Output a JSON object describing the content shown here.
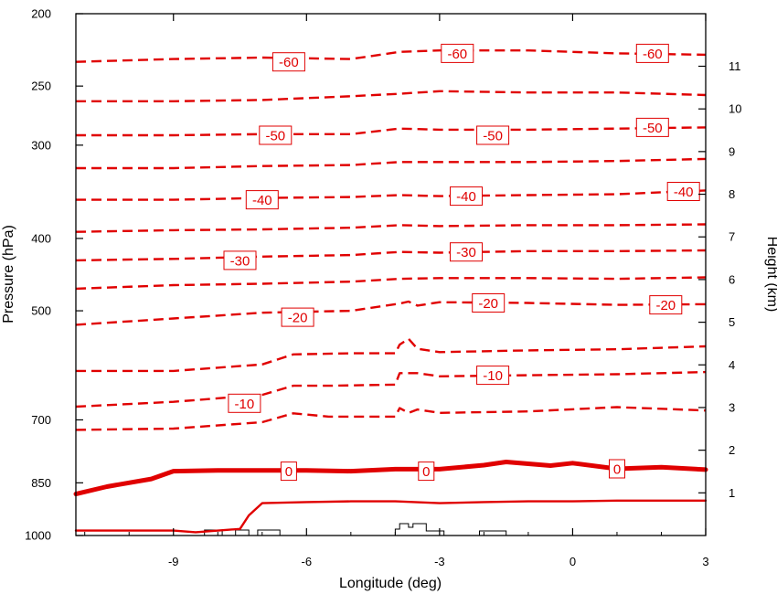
{
  "chart_data": {
    "type": "line",
    "title": "",
    "xlabel": "Longitude (deg)",
    "ylabel": "Pressure (hPa)",
    "y2label": "Height (km)",
    "xlim": [
      -11.2,
      3
    ],
    "ylim_pressure": [
      1000,
      200
    ],
    "y_scale": "log-pressure",
    "x_ticks": [
      -9,
      -6,
      -3,
      0,
      3
    ],
    "y_ticks": [
      200,
      250,
      300,
      400,
      500,
      700,
      850,
      1000
    ],
    "y2_ticks": [
      1,
      2,
      3,
      4,
      5,
      6,
      7,
      8,
      9,
      10,
      11
    ],
    "line_color": "#e00000",
    "contours": [
      {
        "level": -60,
        "style": "dashed",
        "x": [
          -11.2,
          -9,
          -7,
          -5,
          -3.9,
          -3,
          -1,
          1,
          3
        ],
        "y": [
          232,
          230,
          229,
          230,
          225,
          224,
          224,
          226,
          227
        ]
      },
      {
        "level": -55,
        "style": "dashed",
        "x": [
          -11.2,
          -9,
          -7,
          -5,
          -3.9,
          -3,
          -1,
          1,
          3
        ],
        "y": [
          262,
          262,
          261,
          258,
          256,
          254,
          255,
          255,
          257
        ]
      },
      {
        "level": -50,
        "style": "dashed",
        "x": [
          -11.2,
          -9,
          -7,
          -5,
          -3.9,
          -3,
          -1,
          1,
          3
        ],
        "y": [
          291,
          291,
          290,
          290,
          285,
          286,
          286,
          285,
          284
        ]
      },
      {
        "level": -45,
        "style": "dashed",
        "x": [
          -11.2,
          -9,
          -7,
          -5,
          -3.9,
          -3,
          -1,
          1,
          3
        ],
        "y": [
          322,
          322,
          320,
          319,
          316,
          316,
          316,
          315,
          313
        ]
      },
      {
        "level": -40,
        "style": "dashed",
        "x": [
          -11.2,
          -9,
          -7,
          -5,
          -3.9,
          -3,
          -1,
          1,
          3
        ],
        "y": [
          355,
          355,
          353,
          352,
          350,
          351,
          350,
          349,
          345
        ]
      },
      {
        "level": -35,
        "style": "dashed",
        "x": [
          -11.2,
          -9,
          -7,
          -5,
          -3.9,
          -3,
          -1,
          1,
          3
        ],
        "y": [
          392,
          390,
          389,
          387,
          384,
          385,
          384,
          384,
          383
        ]
      },
      {
        "level": -30,
        "style": "dashed",
        "x": [
          -11.2,
          -9,
          -7,
          -5,
          -3.9,
          -3,
          -1,
          1,
          3
        ],
        "y": [
          428,
          426,
          423,
          421,
          417,
          418,
          416,
          416,
          415
        ]
      },
      {
        "level": -25,
        "style": "dashed",
        "x": [
          -11.2,
          -9,
          -7,
          -5,
          -3.9,
          -3,
          -1,
          1,
          3
        ],
        "y": [
          467,
          462,
          460,
          457,
          453,
          452,
          452,
          453,
          451
        ]
      },
      {
        "level": -20,
        "style": "dashed",
        "x": [
          -11.2,
          -9,
          -7,
          -5,
          -3.9,
          -3.7,
          -3.5,
          -3,
          -1,
          1,
          3
        ],
        "y": [
          522,
          512,
          503,
          500,
          489,
          486,
          492,
          487,
          488,
          491,
          490
        ]
      },
      {
        "level": -15,
        "style": "dashed",
        "x": [
          -11.2,
          -9,
          -7,
          -6.3,
          -5,
          -4,
          -3.9,
          -3.7,
          -3.5,
          -3,
          -1,
          1,
          3
        ],
        "y": [
          602,
          602,
          590,
          572,
          570,
          570,
          555,
          545,
          562,
          568,
          565,
          563,
          558
        ]
      },
      {
        "level": -10,
        "style": "dashed",
        "x": [
          -11.2,
          -9,
          -7,
          -6.3,
          -5.5,
          -4,
          -3.9,
          -3.5,
          -3,
          -1,
          1,
          3
        ],
        "y": [
          672,
          662,
          648,
          630,
          630,
          628,
          606,
          606,
          612,
          610,
          608,
          604
        ]
      },
      {
        "level": -5,
        "style": "dashed",
        "x": [
          -11.2,
          -9,
          -7,
          -6.3,
          -5.5,
          -4,
          -3.9,
          -3.7,
          -3.5,
          -3,
          -1,
          1,
          3
        ],
        "y": [
          722,
          719,
          705,
          686,
          693,
          693,
          675,
          685,
          678,
          685,
          682,
          673,
          680
        ]
      },
      {
        "level": 0,
        "style": "thick",
        "x": [
          -11.2,
          -10.5,
          -9.5,
          -9,
          -8,
          -6,
          -5,
          -4,
          -3,
          -2,
          -1.5,
          -0.5,
          0,
          1,
          2,
          3
        ],
        "y": [
          880,
          860,
          840,
          820,
          818,
          818,
          820,
          815,
          815,
          805,
          797,
          806,
          800,
          814,
          810,
          816
        ]
      },
      {
        "level": 5,
        "style": "solid",
        "x": [
          -11.2,
          -9,
          -8.5,
          -7.5,
          -7.3,
          -7,
          -6,
          -5,
          -4,
          -3,
          -2,
          -1,
          0,
          1,
          2,
          3
        ],
        "y": [
          985,
          985,
          990,
          980,
          940,
          905,
          902,
          900,
          900,
          905,
          902,
          900,
          900,
          898,
          898,
          898
        ]
      }
    ],
    "contour_labels": [
      {
        "text": "-60",
        "x": -6.4,
        "y": 232
      },
      {
        "text": "-60",
        "x": -2.6,
        "y": 226
      },
      {
        "text": "-60",
        "x": 1.8,
        "y": 226
      },
      {
        "text": "-50",
        "x": -6.7,
        "y": 291
      },
      {
        "text": "-50",
        "x": -1.8,
        "y": 291
      },
      {
        "text": "-50",
        "x": 1.8,
        "y": 284
      },
      {
        "text": "-40",
        "x": -7.0,
        "y": 355
      },
      {
        "text": "-40",
        "x": -2.4,
        "y": 351
      },
      {
        "text": "-40",
        "x": 2.5,
        "y": 346
      },
      {
        "text": "-30",
        "x": -7.5,
        "y": 428
      },
      {
        "text": "-30",
        "x": -2.4,
        "y": 417
      },
      {
        "text": "-20",
        "x": -6.2,
        "y": 510
      },
      {
        "text": "-20",
        "x": -1.9,
        "y": 488
      },
      {
        "text": "-20",
        "x": 2.1,
        "y": 491
      },
      {
        "text": "-10",
        "x": -7.4,
        "y": 665
      },
      {
        "text": "-10",
        "x": -1.8,
        "y": 610
      },
      {
        "text": "0",
        "x": -6.4,
        "y": 820
      },
      {
        "text": "0",
        "x": -3.3,
        "y": 820
      },
      {
        "text": "0",
        "x": 1.0,
        "y": 814
      }
    ],
    "terrain": {
      "x": [
        -8.3,
        -7.9,
        -7.6,
        -7.3,
        -7.1,
        -6.6,
        -6.3,
        -4.0,
        -3.9,
        -3.7,
        -3.6,
        -3.3,
        -2.9,
        -2.1,
        -1.5
      ],
      "label": ""
    }
  }
}
